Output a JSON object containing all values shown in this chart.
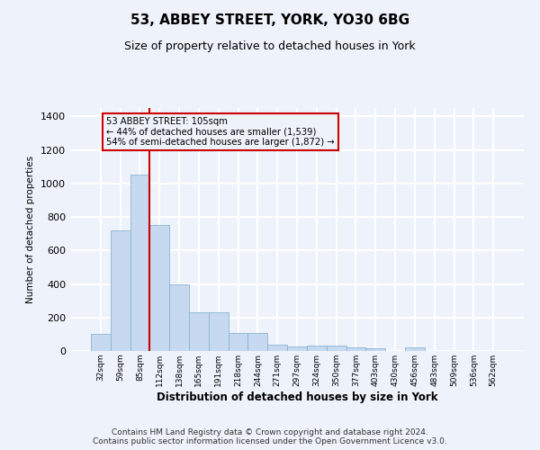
{
  "title": "53, ABBEY STREET, YORK, YO30 6BG",
  "subtitle": "Size of property relative to detached houses in York",
  "xlabel": "Distribution of detached houses by size in York",
  "ylabel": "Number of detached properties",
  "footnote": "Contains HM Land Registry data © Crown copyright and database right 2024.\nContains public sector information licensed under the Open Government Licence v3.0.",
  "categories": [
    "32sqm",
    "59sqm",
    "85sqm",
    "112sqm",
    "138sqm",
    "165sqm",
    "191sqm",
    "218sqm",
    "244sqm",
    "271sqm",
    "297sqm",
    "324sqm",
    "350sqm",
    "377sqm",
    "403sqm",
    "430sqm",
    "456sqm",
    "483sqm",
    "509sqm",
    "536sqm",
    "562sqm"
  ],
  "values": [
    100,
    720,
    1050,
    750,
    400,
    230,
    230,
    110,
    110,
    40,
    25,
    30,
    30,
    20,
    15,
    0,
    20,
    0,
    0,
    0,
    0
  ],
  "bar_color": "#c6d9f0",
  "bar_edge_color": "#8ab4d4",
  "property_line_index": 2.5,
  "property_line_color": "#cc0000",
  "annotation_text": "53 ABBEY STREET: 105sqm\n← 44% of detached houses are smaller (1,539)\n54% of semi-detached houses are larger (1,872) →",
  "annotation_box_color": "#cc0000",
  "annotation_bg_color": "#eef2fa",
  "ylim": [
    0,
    1450
  ],
  "yticks": [
    0,
    200,
    400,
    600,
    800,
    1000,
    1200,
    1400
  ],
  "background_color": "#eef2fa",
  "grid_color": "#ffffff",
  "title_fontsize": 11,
  "subtitle_fontsize": 9,
  "footnote_fontsize": 6.5
}
